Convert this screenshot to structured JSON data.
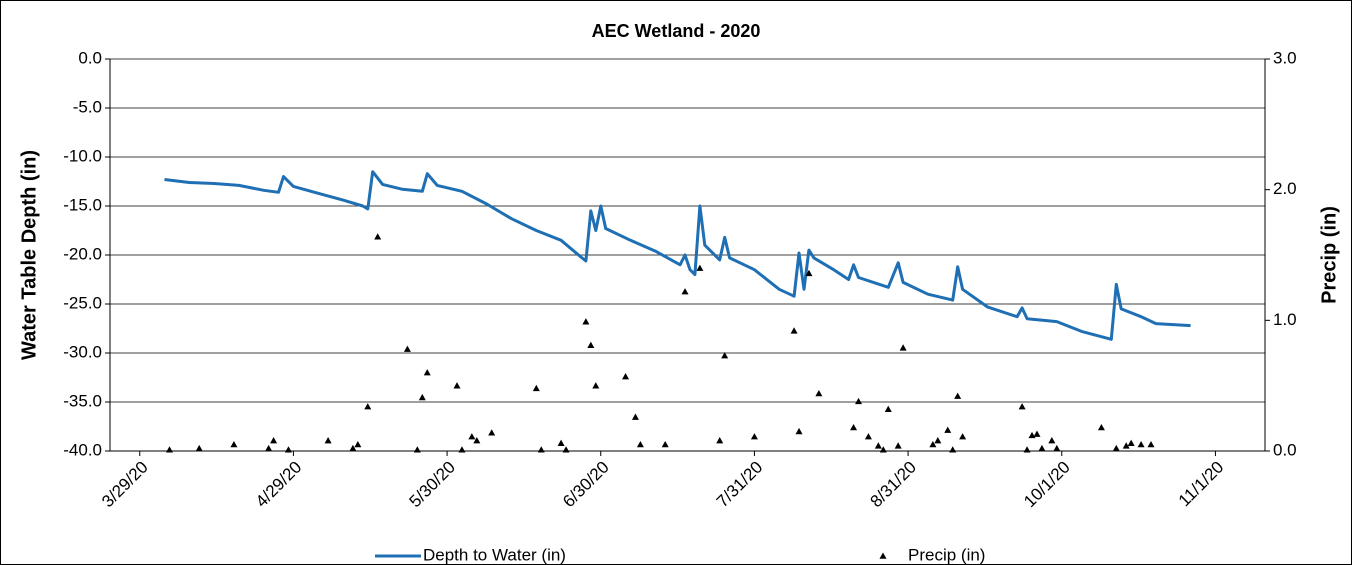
{
  "chart_data": {
    "type": "line",
    "title": "AEC Wetland - 2020",
    "ylabel": "Water Table Depth (in)",
    "y2label": "Precip (in)",
    "xlim": [
      "2020-03-23",
      "2020-11-11"
    ],
    "xticks": [
      {
        "value": "2020-03-29",
        "label": "3/29/20"
      },
      {
        "value": "2020-04-29",
        "label": "4/29/20"
      },
      {
        "value": "2020-05-30",
        "label": "5/30/20"
      },
      {
        "value": "2020-06-30",
        "label": "6/30/20"
      },
      {
        "value": "2020-07-31",
        "label": "7/31/20"
      },
      {
        "value": "2020-08-31",
        "label": "8/31/20"
      },
      {
        "value": "2020-10-01",
        "label": "10/1/20"
      },
      {
        "value": "2020-11-01",
        "label": "11/1/20"
      }
    ],
    "ylim": [
      -40,
      0
    ],
    "yticks": [
      {
        "value": -40,
        "label": "-40.0"
      },
      {
        "value": -35,
        "label": "-35.0"
      },
      {
        "value": -30,
        "label": "-30.0"
      },
      {
        "value": -25,
        "label": "-25.0"
      },
      {
        "value": -20,
        "label": "-20.0"
      },
      {
        "value": -15,
        "label": "-15.0"
      },
      {
        "value": -10,
        "label": "-10.0"
      },
      {
        "value": -5,
        "label": "-5.0"
      },
      {
        "value": 0,
        "label": "0.0"
      }
    ],
    "y2lim": [
      0,
      3
    ],
    "y2ticks": [
      {
        "value": 0,
        "label": "0.0"
      },
      {
        "value": 1,
        "label": "1.0"
      },
      {
        "value": 2,
        "label": "2.0"
      },
      {
        "value": 3,
        "label": "3.0"
      }
    ],
    "grid": true,
    "legend": "bottom",
    "series": [
      {
        "name": "Depth to Water (in)",
        "kind": "line",
        "color": "#1f6fb4",
        "axis": "y",
        "x": [
          "2020-04-03",
          "2020-04-08",
          "2020-04-13",
          "2020-04-18",
          "2020-04-23",
          "2020-04-26",
          "2020-04-27",
          "2020-04-29",
          "2020-05-04",
          "2020-05-09",
          "2020-05-13",
          "2020-05-14",
          "2020-05-15",
          "2020-05-17",
          "2020-05-21",
          "2020-05-25",
          "2020-05-26",
          "2020-05-28",
          "2020-06-02",
          "2020-06-07",
          "2020-06-12",
          "2020-06-17",
          "2020-06-22",
          "2020-06-26",
          "2020-06-27",
          "2020-06-28",
          "2020-06-29",
          "2020-06-30",
          "2020-07-01",
          "2020-07-06",
          "2020-07-11",
          "2020-07-16",
          "2020-07-17",
          "2020-07-18",
          "2020-07-19",
          "2020-07-20",
          "2020-07-21",
          "2020-07-24",
          "2020-07-25",
          "2020-07-26",
          "2020-07-31",
          "2020-08-05",
          "2020-08-08",
          "2020-08-09",
          "2020-08-10",
          "2020-08-11",
          "2020-08-12",
          "2020-08-16",
          "2020-08-19",
          "2020-08-20",
          "2020-08-21",
          "2020-08-27",
          "2020-08-29",
          "2020-08-30",
          "2020-09-04",
          "2020-09-09",
          "2020-09-10",
          "2020-09-11",
          "2020-09-16",
          "2020-09-22",
          "2020-09-23",
          "2020-09-24",
          "2020-09-30",
          "2020-10-05",
          "2020-10-11",
          "2020-10-12",
          "2020-10-13",
          "2020-10-17",
          "2020-10-20",
          "2020-10-27"
        ],
        "values": [
          -12.3,
          -12.6,
          -12.7,
          -12.9,
          -13.4,
          -13.6,
          -12.0,
          -13.0,
          -13.7,
          -14.4,
          -15.0,
          -15.3,
          -11.5,
          -12.8,
          -13.3,
          -13.5,
          -11.7,
          -12.9,
          -13.5,
          -14.8,
          -16.3,
          -17.5,
          -18.5,
          -20.2,
          -20.6,
          -15.5,
          -17.5,
          -15.0,
          -17.3,
          -18.5,
          -19.6,
          -21.0,
          -20.0,
          -21.5,
          -22.0,
          -15.0,
          -19.0,
          -20.5,
          -18.2,
          -20.3,
          -21.5,
          -23.5,
          -24.2,
          -19.8,
          -23.5,
          -19.5,
          -20.3,
          -21.5,
          -22.5,
          -21.0,
          -22.3,
          -23.3,
          -20.8,
          -22.8,
          -24.0,
          -24.6,
          -21.2,
          -23.5,
          -25.3,
          -26.3,
          -25.4,
          -26.5,
          -26.8,
          -27.8,
          -28.6,
          -23.0,
          -25.5,
          -26.3,
          -27.0,
          -27.2
        ]
      },
      {
        "name": "Precip (in)",
        "kind": "scatter",
        "color": "#000000",
        "axis": "y2",
        "x": [
          "2020-04-04",
          "2020-04-10",
          "2020-04-17",
          "2020-04-24",
          "2020-04-25",
          "2020-04-28",
          "2020-05-06",
          "2020-05-11",
          "2020-05-12",
          "2020-05-14",
          "2020-05-16",
          "2020-05-22",
          "2020-05-24",
          "2020-05-25",
          "2020-05-26",
          "2020-06-01",
          "2020-06-02",
          "2020-06-04",
          "2020-06-05",
          "2020-06-08",
          "2020-06-17",
          "2020-06-18",
          "2020-06-22",
          "2020-06-23",
          "2020-06-27",
          "2020-06-28",
          "2020-06-29",
          "2020-07-05",
          "2020-07-07",
          "2020-07-08",
          "2020-07-13",
          "2020-07-17",
          "2020-07-20",
          "2020-07-24",
          "2020-07-25",
          "2020-07-31",
          "2020-08-08",
          "2020-08-09",
          "2020-08-11",
          "2020-08-13",
          "2020-08-20",
          "2020-08-21",
          "2020-08-23",
          "2020-08-25",
          "2020-08-26",
          "2020-08-27",
          "2020-08-29",
          "2020-08-30",
          "2020-09-05",
          "2020-09-06",
          "2020-09-08",
          "2020-09-09",
          "2020-09-10",
          "2020-09-11",
          "2020-09-23",
          "2020-09-24",
          "2020-09-25",
          "2020-09-26",
          "2020-09-27",
          "2020-09-29",
          "2020-09-30",
          "2020-10-09",
          "2020-10-12",
          "2020-10-14",
          "2020-10-15",
          "2020-10-17",
          "2020-10-19"
        ],
        "values": [
          0.01,
          0.02,
          0.05,
          0.02,
          0.08,
          0.01,
          0.08,
          0.02,
          0.05,
          0.34,
          1.64,
          0.78,
          0.01,
          0.41,
          0.6,
          0.5,
          0.01,
          0.11,
          0.08,
          0.14,
          0.48,
          0.01,
          0.06,
          0.01,
          0.99,
          0.81,
          0.5,
          0.57,
          0.26,
          0.05,
          0.05,
          1.22,
          1.4,
          0.08,
          0.73,
          0.11,
          0.92,
          0.15,
          1.36,
          0.44,
          0.18,
          0.38,
          0.11,
          0.04,
          0.01,
          0.32,
          0.04,
          0.79,
          0.05,
          0.08,
          0.16,
          0.01,
          0.42,
          0.11,
          0.34,
          0.01,
          0.12,
          0.13,
          0.02,
          0.08,
          0.02,
          0.18,
          0.02,
          0.04,
          0.06,
          0.05,
          0.05
        ]
      }
    ]
  }
}
